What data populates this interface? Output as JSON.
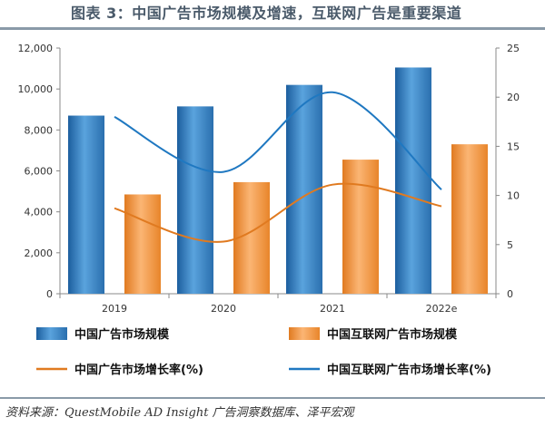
{
  "title": "图表 3：中国广告市场规模及增速，互联网广告是重要渠道",
  "source": "资料来源：QuestMobile  AD  Insight 广告洞察数据库、泽平宏观",
  "chart_data": {
    "type": "bar",
    "categories": [
      "2019",
      "2020",
      "2021",
      "2022e"
    ],
    "series": [
      {
        "name": "中国广告市场规模",
        "kind": "bar",
        "axis": "left",
        "color": "#2e7bbf",
        "values": [
          8700,
          9150,
          10200,
          11050
        ]
      },
      {
        "name": "中国互联网广告市场规模",
        "kind": "bar",
        "axis": "left",
        "color": "#f08c2e",
        "values": [
          4850,
          5450,
          6550,
          7300
        ]
      },
      {
        "name": "中国广告市场增长率(%)",
        "kind": "line",
        "axis": "right",
        "color": "#e07a20",
        "values": [
          8.7,
          5.3,
          11.1,
          8.9
        ]
      },
      {
        "name": "中国互联网广告市场增长率(%)",
        "kind": "line",
        "axis": "right",
        "color": "#1f78c1",
        "values": [
          18.0,
          12.4,
          20.5,
          10.6
        ]
      }
    ],
    "left_axis": {
      "ylim": [
        0,
        12000
      ],
      "ticks": [
        "0",
        "2,000",
        "4,000",
        "6,000",
        "8,000",
        "10,000",
        "12,000"
      ]
    },
    "right_axis": {
      "ylim": [
        0,
        25
      ],
      "ticks": [
        "0",
        "5",
        "10",
        "15",
        "20",
        "25"
      ]
    },
    "legend_placement": "bottom",
    "grid": false
  }
}
